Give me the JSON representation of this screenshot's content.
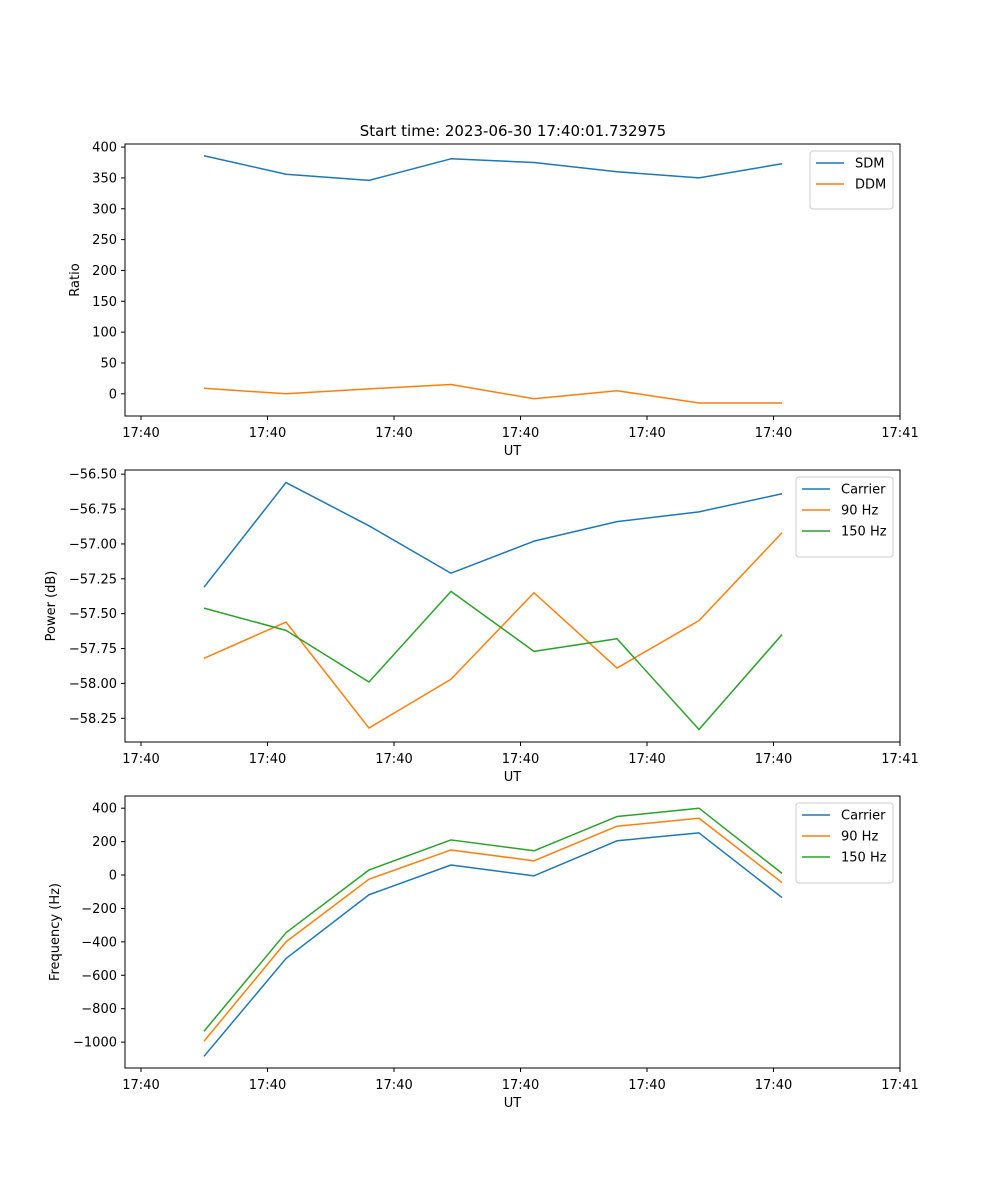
{
  "figure_title": "Start time: 2023-06-30 17:40:01.732975",
  "chart_data": [
    {
      "type": "line",
      "xlabel": "UT",
      "ylabel": "Ratio",
      "x_tick_labels": [
        "17:40",
        "17:40",
        "17:40",
        "17:40",
        "17:40",
        "17:40",
        "17:41"
      ],
      "y_ticks": [
        0,
        50,
        100,
        150,
        200,
        250,
        300,
        350,
        400
      ],
      "ylim": [
        -36,
        405
      ],
      "legend_position": "upper-right",
      "grid": false,
      "series": [
        {
          "name": "SDM",
          "color": "#1f77b4",
          "values": [
            386,
            356,
            346,
            381,
            375,
            360,
            350,
            373
          ]
        },
        {
          "name": "DDM",
          "color": "#ff7f0e",
          "values": [
            9,
            0,
            8,
            15,
            -8,
            5,
            -15,
            -15
          ]
        }
      ]
    },
    {
      "type": "line",
      "xlabel": "UT",
      "ylabel": "Power (dB)",
      "x_tick_labels": [
        "17:40",
        "17:40",
        "17:40",
        "17:40",
        "17:40",
        "17:40",
        "17:41"
      ],
      "y_ticks": [
        "−58.25",
        "−58.00",
        "−57.75",
        "−57.50",
        "−57.25",
        "−57.00",
        "−56.75",
        "−56.50"
      ],
      "y_tick_values": [
        -58.25,
        -58.0,
        -57.75,
        -57.5,
        -57.25,
        -57.0,
        -56.75,
        -56.5
      ],
      "ylim": [
        -58.42,
        -56.47
      ],
      "legend_position": "upper-right",
      "grid": false,
      "series": [
        {
          "name": "Carrier",
          "color": "#1f77b4",
          "values": [
            -57.31,
            -56.56,
            -56.87,
            -57.21,
            -56.98,
            -56.84,
            -56.77,
            -56.64
          ]
        },
        {
          "name": "90 Hz",
          "color": "#ff7f0e",
          "values": [
            -57.82,
            -57.56,
            -58.32,
            -57.97,
            -57.35,
            -57.89,
            -57.55,
            -56.92
          ]
        },
        {
          "name": "150 Hz",
          "color": "#2ca02c",
          "values": [
            -57.46,
            -57.62,
            -57.99,
            -57.34,
            -57.77,
            -57.68,
            -58.33,
            -57.65
          ]
        }
      ]
    },
    {
      "type": "line",
      "xlabel": "UT",
      "ylabel": "Frequency (Hz)",
      "x_tick_labels": [
        "17:40",
        "17:40",
        "17:40",
        "17:40",
        "17:40",
        "17:40",
        "17:41"
      ],
      "y_ticks": [
        "−1000",
        "−800",
        "−600",
        "−400",
        "−200",
        "0",
        "200",
        "400"
      ],
      "y_tick_values": [
        -1000,
        -800,
        -600,
        -400,
        -200,
        0,
        200,
        400
      ],
      "ylim": [
        -1155,
        473
      ],
      "legend_position": "upper-right",
      "grid": false,
      "series": [
        {
          "name": "Carrier",
          "color": "#1f77b4",
          "values": [
            -1085,
            -500,
            -118,
            60,
            -5,
            205,
            252,
            -135
          ]
        },
        {
          "name": "90 Hz",
          "color": "#ff7f0e",
          "values": [
            -995,
            -400,
            -25,
            150,
            85,
            292,
            340,
            -45
          ]
        },
        {
          "name": "150 Hz",
          "color": "#2ca02c",
          "values": [
            -935,
            -345,
            30,
            210,
            145,
            350,
            400,
            10
          ]
        }
      ]
    }
  ]
}
